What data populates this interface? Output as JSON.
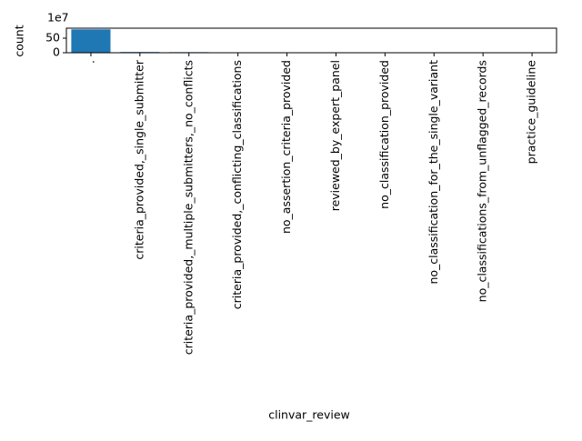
{
  "chart_data": {
    "type": "bar",
    "x_label": "clinvar_review",
    "y_label": "count",
    "y_offset_label": "1e7",
    "categories": [
      ".",
      "criteria_provided,_single_submitter",
      "criteria_provided,_multiple_submitters,_no_conflicts",
      "criteria_provided,_conflicting_classifications",
      "no_assertion_criteria_provided",
      "reviewed_by_expert_panel",
      "no_classification_provided",
      "no_classification_for_the_single_variant",
      "no_classifications_from_unflagged_records",
      "practice_guideline"
    ],
    "values": [
      80.4,
      2.5,
      2.0,
      1.5,
      1.2,
      0.1,
      0,
      0,
      0,
      0
    ],
    "color": "#1f77b4",
    "ylim": [
      0,
      84.4
    ],
    "yticks": [
      0,
      50
    ]
  }
}
